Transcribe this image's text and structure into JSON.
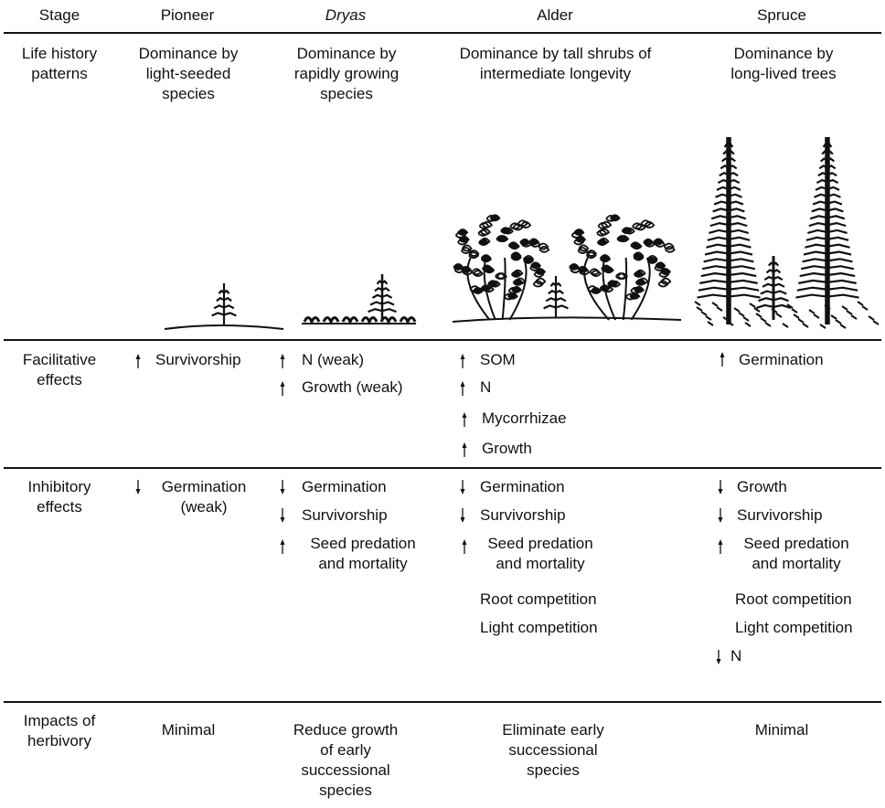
{
  "header": {
    "stage": "Stage",
    "columns": [
      "Pioneer",
      "Dryas",
      "Alder",
      "Spruce"
    ]
  },
  "rows": [
    {
      "label": "Life history patterns",
      "cells": [
        "Dominance by light-seeded species",
        "Dominance by rapidly growing species",
        "Dominance by tall shrubs of intermediate longevity",
        "Dominance by long-lived trees"
      ]
    },
    {
      "label": "Facilitative effects",
      "cells": [
        [
          "Survivorship"
        ],
        [
          "N (weak)",
          "Growth (weak)"
        ],
        [
          "SOM",
          "N",
          "Mycorrhizae",
          "Growth"
        ],
        [
          "Germination"
        ]
      ]
    },
    {
      "label": "Inhibitory effects",
      "cells": [
        [
          "Germination (weak)"
        ],
        [
          "Germination",
          "Survivorship",
          "Seed predation and mortality"
        ],
        [
          "Germination",
          "Survivorship",
          "Seed predation and mortality",
          "Root competition",
          "Light competition"
        ],
        [
          "Growth",
          "Survivorship",
          "Seed predation and mortality",
          "Root competition",
          "Light competition",
          "N"
        ]
      ]
    },
    {
      "label": "Impacts of herbivory",
      "cells": [
        "Minimal",
        "Reduce growth of early successional species",
        "Eliminate early successional species",
        "Minimal"
      ]
    }
  ]
}
